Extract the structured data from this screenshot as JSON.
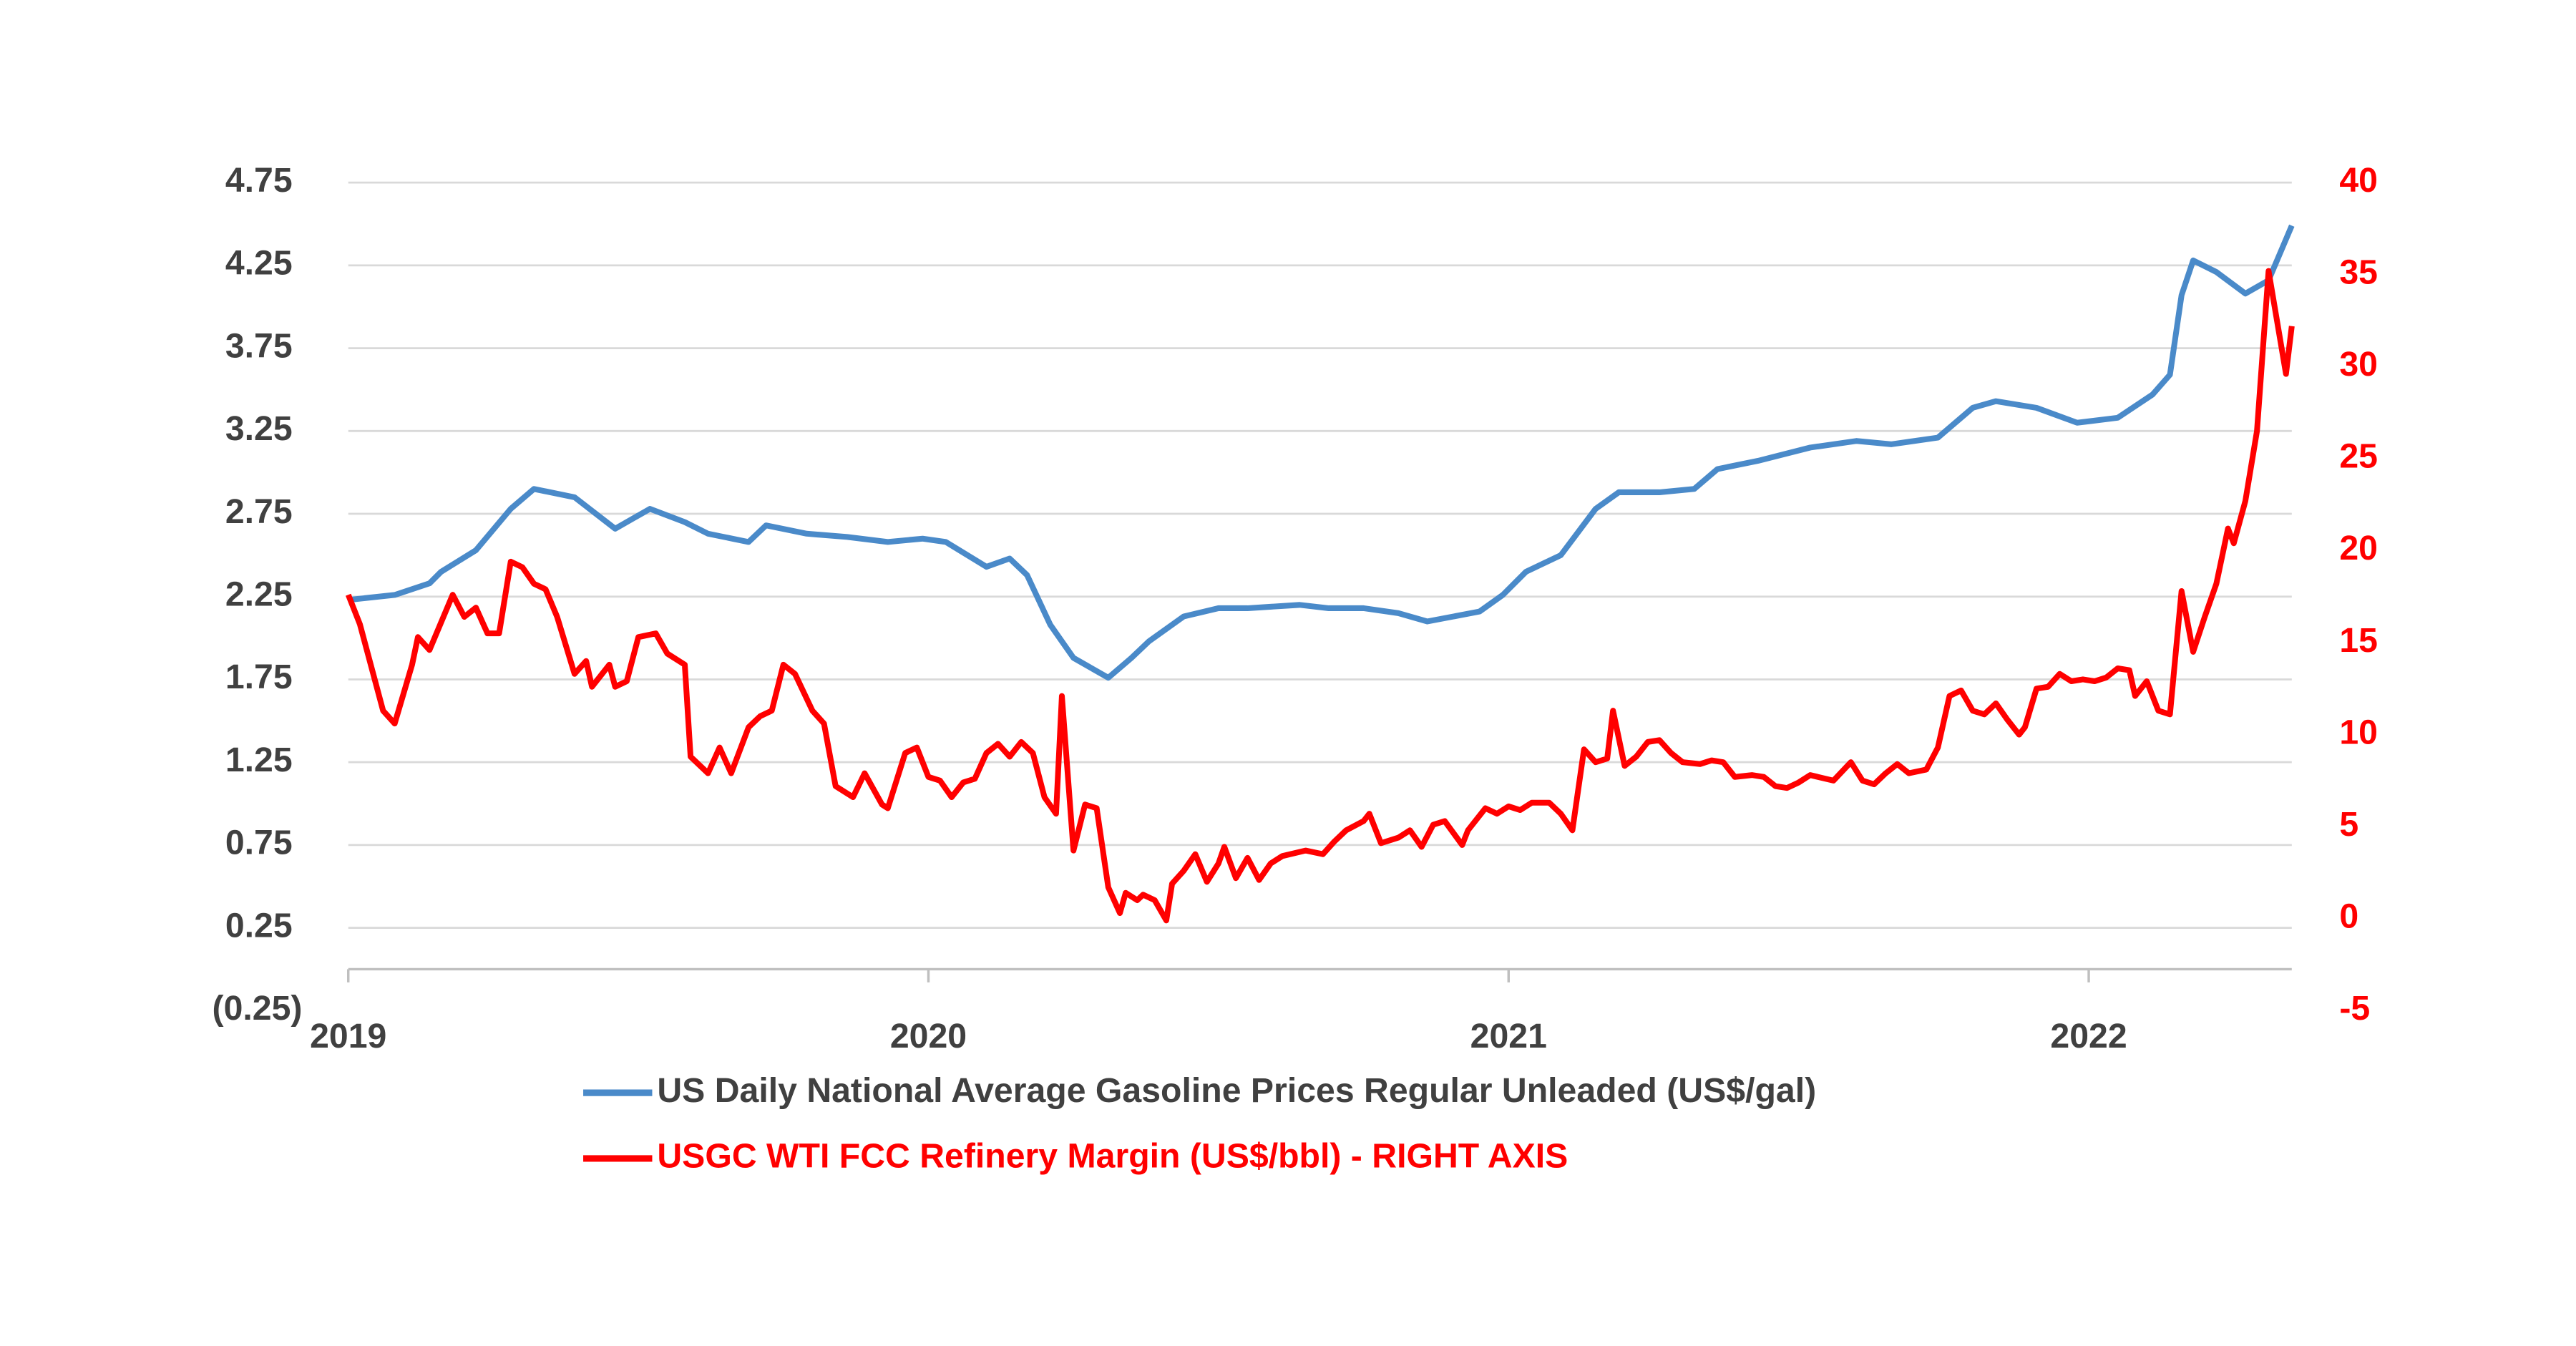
{
  "chart_data": {
    "type": "line",
    "xlim": [
      2019,
      2022.35
    ],
    "xticks": [
      2019,
      2020,
      2021,
      2022
    ],
    "ylim": [
      -0.25,
      4.75
    ],
    "yticks": [
      4.75,
      4.25,
      3.75,
      3.25,
      2.75,
      2.25,
      1.75,
      1.25,
      0.75,
      0.25,
      {
        "value": -0.25,
        "label": "(0.25)"
      }
    ],
    "y2lim": [
      -5,
      40
    ],
    "y2ticks": [
      40,
      35,
      30,
      25,
      20,
      15,
      10,
      5,
      0,
      -5
    ],
    "grid": true,
    "legend": "bottom",
    "series": [
      {
        "name": "US Daily National Average Gasoline Prices Regular Unleaded (US$/gal)",
        "color": "#4a8ac9",
        "x": [
          2019.0,
          2019.08,
          2019.14,
          2019.16,
          2019.22,
          2019.28,
          2019.32,
          2019.39,
          2019.46,
          2019.52,
          2019.58,
          2019.62,
          2019.69,
          2019.72,
          2019.79,
          2019.86,
          2019.93,
          2019.99,
          2020.03,
          2020.1,
          2020.14,
          2020.17,
          2020.21,
          2020.25,
          2020.31,
          2020.35,
          2020.38,
          2020.44,
          2020.5,
          2020.55,
          2020.64,
          2020.69,
          2020.75,
          2020.81,
          2020.86,
          2020.95,
          2020.99,
          2021.03,
          2021.09,
          2021.15,
          2021.19,
          2021.26,
          2021.32,
          2021.36,
          2021.43,
          2021.52,
          2021.6,
          2021.66,
          2021.74,
          2021.8,
          2021.84,
          2021.91,
          2021.98,
          2022.05,
          2022.11,
          2022.14,
          2022.16,
          2022.18,
          2022.22,
          2022.27,
          2022.31,
          2022.35
        ],
        "values": [
          2.23,
          2.26,
          2.33,
          2.4,
          2.53,
          2.78,
          2.9,
          2.85,
          2.66,
          2.78,
          2.7,
          2.63,
          2.58,
          2.68,
          2.63,
          2.61,
          2.58,
          2.6,
          2.58,
          2.43,
          2.48,
          2.38,
          2.08,
          1.88,
          1.76,
          1.88,
          1.98,
          2.13,
          2.18,
          2.18,
          2.2,
          2.18,
          2.18,
          2.15,
          2.1,
          2.16,
          2.26,
          2.4,
          2.5,
          2.78,
          2.88,
          2.88,
          2.9,
          3.02,
          3.07,
          3.15,
          3.19,
          3.17,
          3.21,
          3.39,
          3.43,
          3.39,
          3.3,
          3.33,
          3.47,
          3.59,
          4.07,
          4.28,
          4.21,
          4.08,
          4.16,
          4.49
        ]
      },
      {
        "name": "USGC WTI FCC Refinery Margin (US$/bbl) - RIGHT AXIS",
        "color": "#ff0000",
        "axis": "y2",
        "x": [
          2019.0,
          2019.02,
          2019.06,
          2019.08,
          2019.11,
          2019.12,
          2019.14,
          2019.18,
          2019.2,
          2019.22,
          2019.24,
          2019.26,
          2019.28,
          2019.3,
          2019.32,
          2019.34,
          2019.36,
          2019.39,
          2019.41,
          2019.42,
          2019.45,
          2019.46,
          2019.48,
          2019.5,
          2019.53,
          2019.55,
          2019.58,
          2019.59,
          2019.62,
          2019.64,
          2019.66,
          2019.69,
          2019.71,
          2019.73,
          2019.75,
          2019.77,
          2019.8,
          2019.82,
          2019.84,
          2019.87,
          2019.89,
          2019.92,
          2019.93,
          2019.96,
          2019.98,
          2020.0,
          2020.02,
          2020.04,
          2020.06,
          2020.08,
          2020.1,
          2020.12,
          2020.14,
          2020.16,
          2020.18,
          2020.2,
          2020.22,
          2020.23,
          2020.25,
          2020.27,
          2020.29,
          2020.31,
          2020.33,
          2020.34,
          2020.36,
          2020.37,
          2020.39,
          2020.41,
          2020.42,
          2020.44,
          2020.46,
          2020.48,
          2020.5,
          2020.51,
          2020.53,
          2020.55,
          2020.57,
          2020.59,
          2020.61,
          2020.65,
          2020.68,
          2020.7,
          2020.72,
          2020.75,
          2020.76,
          2020.78,
          2020.81,
          2020.83,
          2020.85,
          2020.87,
          2020.89,
          2020.92,
          2020.93,
          2020.96,
          2020.98,
          2021.0,
          2021.02,
          2021.04,
          2021.07,
          2021.09,
          2021.11,
          2021.13,
          2021.15,
          2021.17,
          2021.18,
          2021.2,
          2021.22,
          2021.24,
          2021.26,
          2021.28,
          2021.3,
          2021.33,
          2021.35,
          2021.37,
          2021.39,
          2021.42,
          2021.44,
          2021.46,
          2021.48,
          2021.5,
          2021.52,
          2021.56,
          2021.59,
          2021.61,
          2021.63,
          2021.65,
          2021.67,
          2021.69,
          2021.72,
          2021.74,
          2021.76,
          2021.78,
          2021.8,
          2021.82,
          2021.84,
          2021.86,
          2021.88,
          2021.89,
          2021.91,
          2021.93,
          2021.95,
          2021.97,
          2021.99,
          2022.01,
          2022.03,
          2022.05,
          2022.07,
          2022.08,
          2022.1,
          2022.12,
          2022.14,
          2022.16,
          2022.18,
          2022.2,
          2022.22,
          2022.24,
          2022.25,
          2022.27,
          2022.29,
          2022.31,
          2022.34,
          2022.35
        ],
        "values": [
          17.6,
          16.0,
          11.3,
          10.6,
          13.8,
          15.3,
          14.6,
          17.6,
          16.4,
          16.9,
          15.5,
          15.5,
          19.4,
          19.1,
          18.2,
          17.9,
          16.4,
          13.3,
          14.0,
          12.6,
          13.8,
          12.6,
          12.9,
          15.3,
          15.5,
          14.4,
          13.8,
          8.8,
          7.9,
          9.3,
          7.9,
          10.4,
          11.0,
          11.3,
          13.8,
          13.3,
          11.3,
          10.6,
          7.2,
          6.6,
          7.9,
          6.2,
          6.0,
          9.0,
          9.3,
          7.7,
          7.5,
          6.6,
          7.4,
          7.6,
          9.0,
          9.5,
          8.8,
          9.6,
          9.0,
          6.6,
          5.7,
          12.1,
          3.7,
          6.2,
          6.0,
          1.7,
          0.3,
          1.4,
          1.0,
          1.3,
          1.0,
          -0.1,
          1.9,
          2.6,
          3.5,
          2.0,
          3.0,
          3.9,
          2.2,
          3.3,
          2.1,
          3.0,
          3.4,
          3.7,
          3.5,
          4.2,
          4.8,
          5.3,
          5.7,
          4.1,
          4.4,
          4.8,
          3.9,
          5.1,
          5.3,
          4.0,
          4.8,
          6.0,
          5.7,
          6.1,
          5.9,
          6.3,
          6.3,
          5.7,
          4.8,
          9.2,
          8.5,
          8.7,
          11.3,
          8.3,
          8.8,
          9.6,
          9.7,
          9.0,
          8.5,
          8.4,
          8.6,
          8.5,
          7.7,
          7.8,
          7.7,
          7.2,
          7.1,
          7.4,
          7.8,
          7.5,
          8.5,
          7.5,
          7.3,
          7.9,
          8.4,
          7.9,
          8.1,
          9.3,
          12.1,
          12.4,
          11.3,
          11.1,
          11.7,
          10.8,
          10.0,
          10.4,
          12.5,
          12.6,
          13.3,
          12.9,
          13.0,
          12.9,
          13.1,
          13.6,
          13.5,
          12.1,
          12.9,
          11.3,
          11.1,
          17.8,
          14.5,
          16.4,
          18.2,
          21.2,
          20.4,
          22.7,
          26.5,
          35.2,
          29.6,
          32.2
        ]
      }
    ]
  }
}
